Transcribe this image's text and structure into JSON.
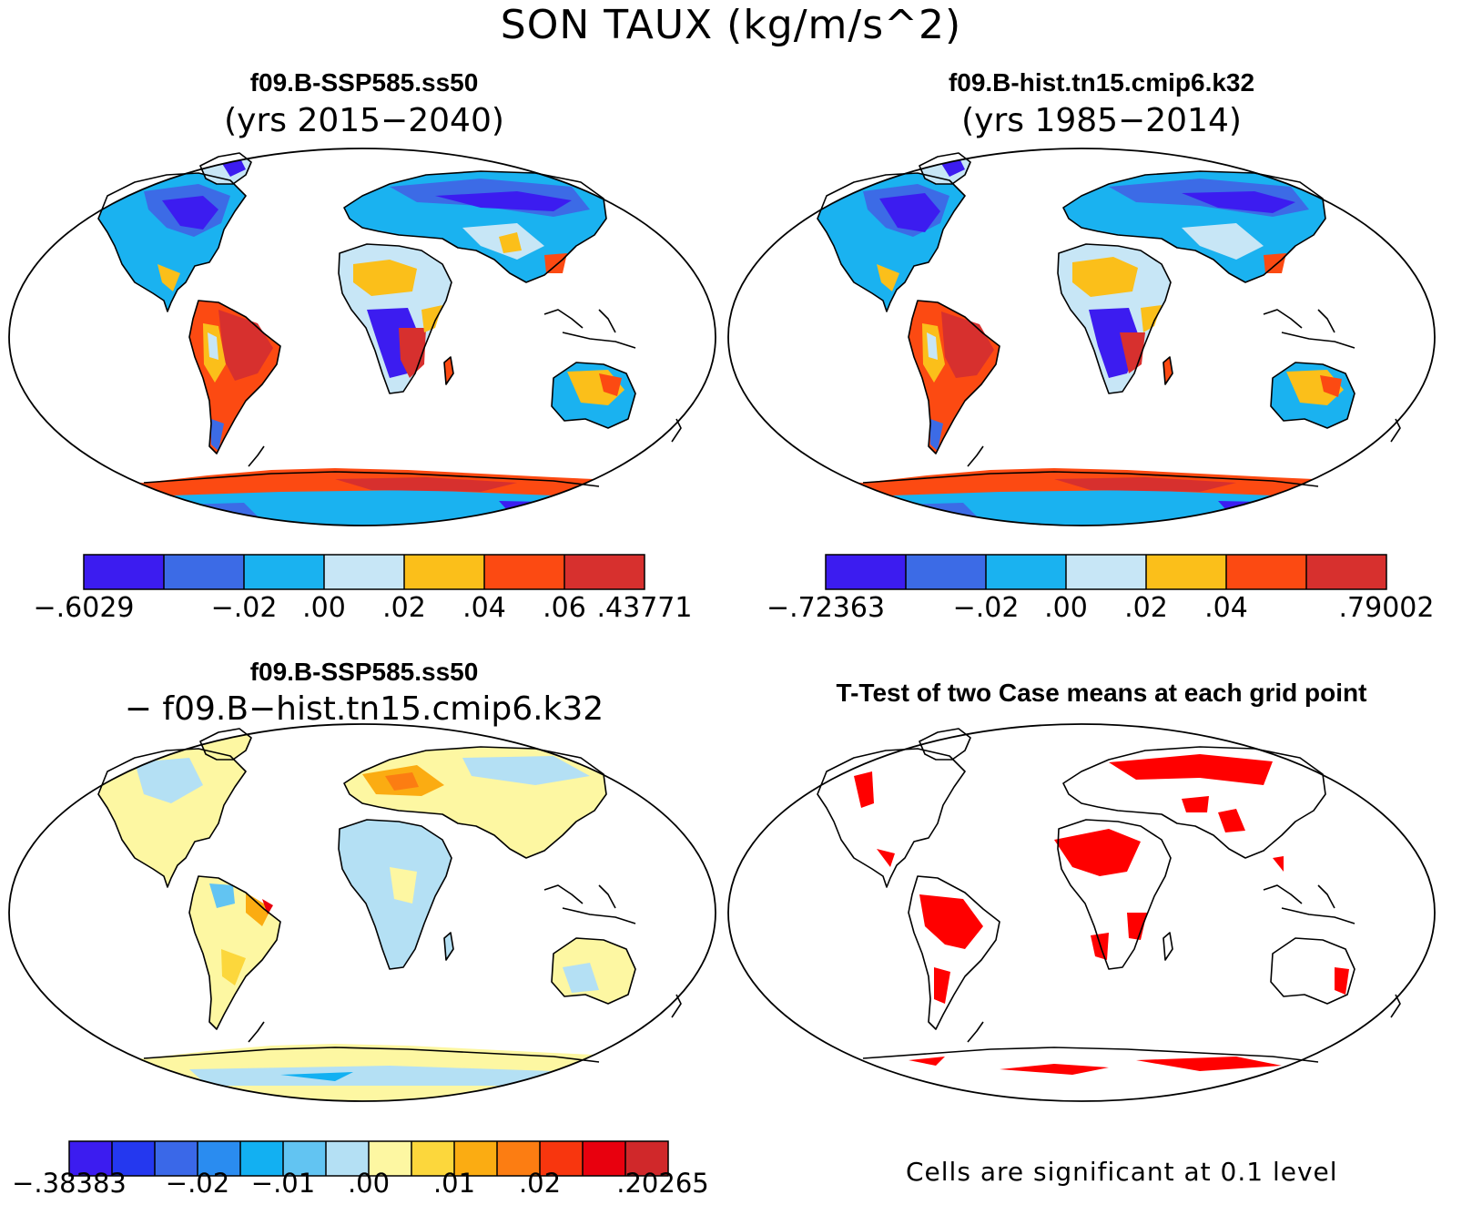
{
  "title": "SON TAUX (kg/m/s^2)",
  "colors": {
    "c1": "#3c1cf0",
    "c2": "#3c6be6",
    "c3": "#1ab2f0",
    "c4": "#c7e6f6",
    "c5": "#fbbf1a",
    "c6": "#fc4a12",
    "c7": "#d7302e",
    "d1": "#3c1cf0",
    "d2": "#2438ef",
    "d3": "#3a68e8",
    "d4": "#2a8cf0",
    "d5": "#12b0f2",
    "d6": "#62c4f2",
    "d7": "#b4e0f4",
    "d8": "#fdf7a2",
    "d9": "#fcd73c",
    "d10": "#fbac12",
    "d11": "#fc7d12",
    "d12": "#f8360e",
    "d13": "#e8000e",
    "d14": "#d0282a",
    "sig": "#ff0000"
  },
  "panels": {
    "p1": {
      "title": "f09.B-SSP585.ss50",
      "subtitle": "(yrs 2015−2040)",
      "colorbar": [
        "−.6029",
        "−.02",
        ".00",
        ".02",
        ".04",
        ".06",
        ".43771"
      ]
    },
    "p2": {
      "title": "f09.B-hist.tn15.cmip6.k32",
      "subtitle": "(yrs 1985−2014)",
      "colorbar": [
        "−.72363",
        "−.02",
        ".00",
        ".02",
        ".04",
        ".79002"
      ]
    },
    "p3": {
      "title": "f09.B-SSP585.ss50",
      "subtitle": "− f09.B−hist.tn15.cmip6.k32",
      "colorbar": [
        "−.38383",
        "−.02",
        "−.01",
        ".00",
        ".01",
        ".02",
        ".20265"
      ]
    },
    "p4": {
      "title": "T-Test of two Case means at each grid point",
      "note": "Cells are significant at 0.1 level"
    }
  }
}
